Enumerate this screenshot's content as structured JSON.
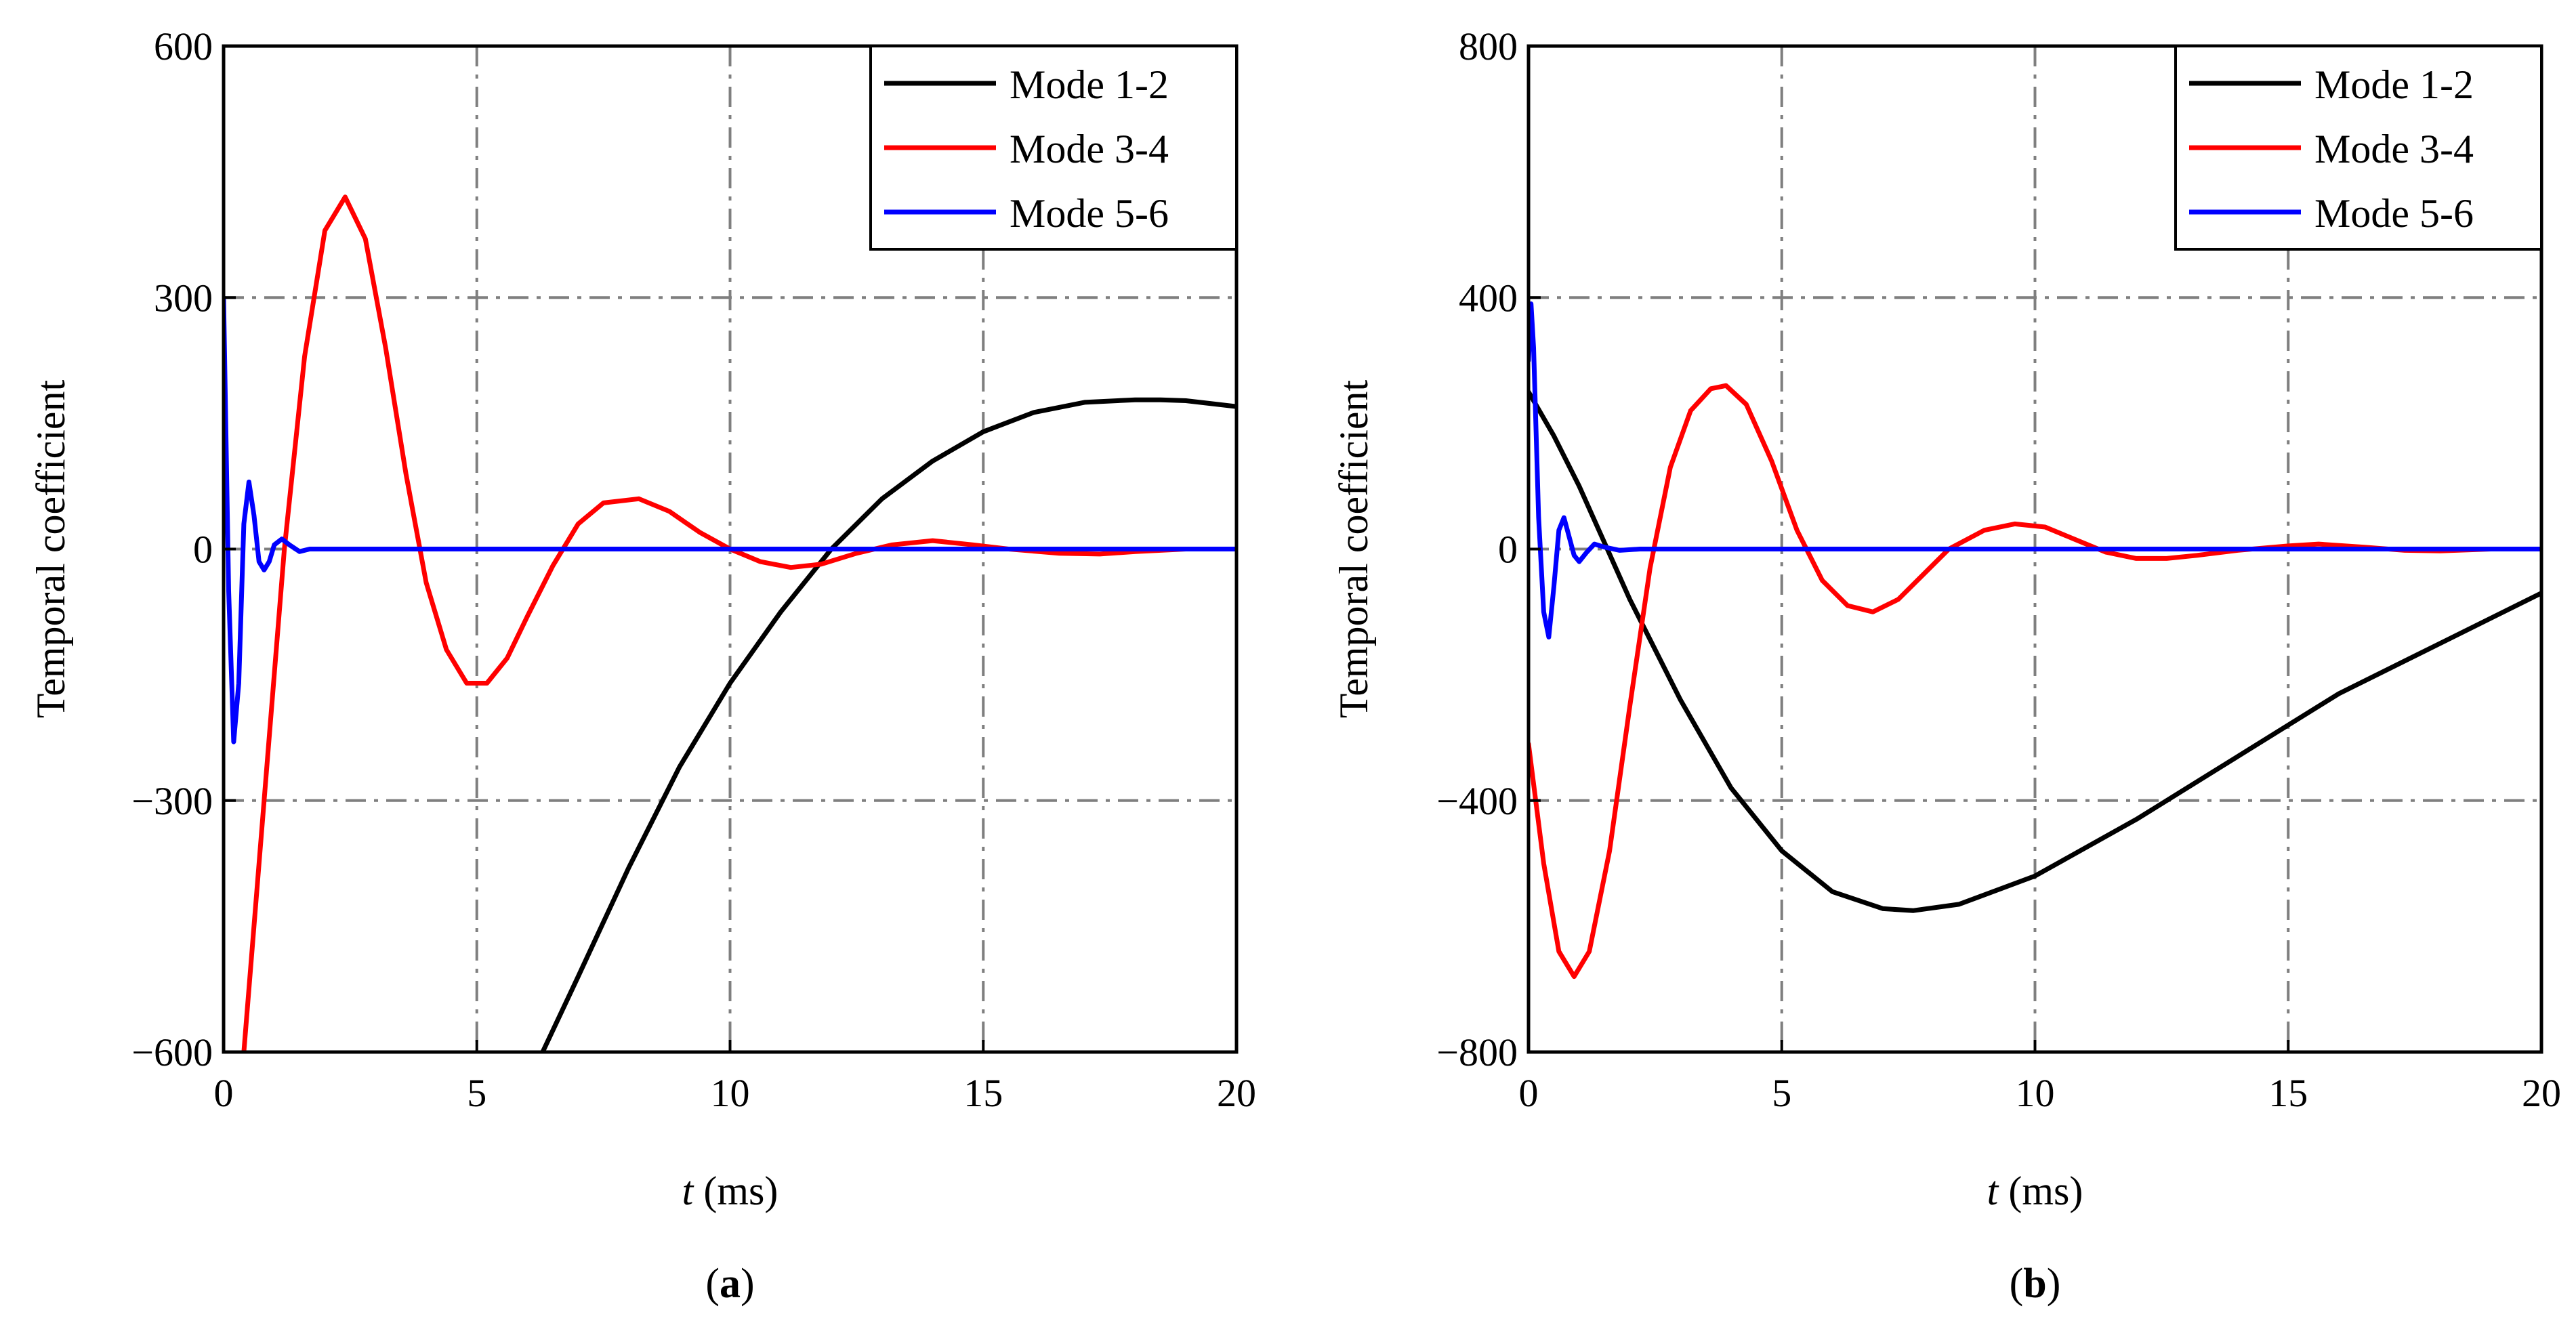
{
  "chart_data": [
    {
      "type": "line",
      "panel_label": "(a)",
      "panel_letter": "a",
      "xlabel_var": "t",
      "xlabel_unit": " (ms)",
      "ylabel": "Temporal coefficient",
      "xlim": [
        0,
        20
      ],
      "ylim": [
        -600,
        600
      ],
      "x_ticks": [
        0,
        5,
        10,
        15,
        20
      ],
      "x_tick_labels": [
        "0",
        "5",
        "10",
        "15",
        "20"
      ],
      "y_ticks": [
        -600,
        -300,
        0,
        300,
        600
      ],
      "y_tick_labels": [
        "−600",
        "−300",
        "0",
        "300",
        "600"
      ],
      "grid": true,
      "legend_position": "top-right",
      "series": [
        {
          "name": "Mode 1-2",
          "color": "#000000",
          "x": [
            6.3,
            7.0,
            8.0,
            9.0,
            10.0,
            11.0,
            12.0,
            13.0,
            14.0,
            15.0,
            16.0,
            17.0,
            18.0,
            18.5,
            19.0,
            20.0
          ],
          "y": [
            -600,
            -510,
            -380,
            -260,
            -160,
            -75,
            0,
            60,
            105,
            140,
            163,
            175,
            178,
            178,
            177,
            170
          ]
        },
        {
          "name": "Mode 3-4",
          "color": "#ff0000",
          "x": [
            0.4,
            0.8,
            1.2,
            1.6,
            2.0,
            2.4,
            2.8,
            3.2,
            3.6,
            4.0,
            4.4,
            4.8,
            5.2,
            5.6,
            6.0,
            6.5,
            7.0,
            7.5,
            8.2,
            8.8,
            9.4,
            10.0,
            10.6,
            11.2,
            11.8,
            12.5,
            13.2,
            14.0,
            14.8,
            15.5,
            16.5,
            17.3,
            18.0,
            19.0,
            20.0
          ],
          "y": [
            -600,
            -300,
            0,
            230,
            380,
            420,
            370,
            240,
            90,
            -40,
            -120,
            -160,
            -160,
            -130,
            -80,
            -20,
            30,
            55,
            60,
            45,
            20,
            0,
            -15,
            -22,
            -18,
            -5,
            5,
            10,
            5,
            0,
            -5,
            -6,
            -3,
            0,
            0
          ]
        },
        {
          "name": "Mode 5-6",
          "color": "#0000ff",
          "x": [
            0.0,
            0.1,
            0.2,
            0.3,
            0.4,
            0.5,
            0.6,
            0.7,
            0.8,
            0.9,
            1.0,
            1.15,
            1.3,
            1.5,
            1.7,
            2.0,
            2.5,
            5.0,
            10.0,
            15.0,
            20.0
          ],
          "y": [
            300,
            -50,
            -230,
            -160,
            30,
            80,
            40,
            -15,
            -25,
            -15,
            5,
            12,
            5,
            -3,
            0,
            0,
            0,
            0,
            0,
            0,
            0
          ]
        }
      ]
    },
    {
      "type": "line",
      "panel_label": "(b)",
      "panel_letter": "b",
      "xlabel_var": "t",
      "xlabel_unit": " (ms)",
      "ylabel": "Temporal coefficient",
      "xlim": [
        0,
        20
      ],
      "ylim": [
        -800,
        800
      ],
      "x_ticks": [
        0,
        5,
        10,
        15,
        20
      ],
      "x_tick_labels": [
        "0",
        "5",
        "10",
        "15",
        "20"
      ],
      "y_ticks": [
        -800,
        -400,
        0,
        400,
        800
      ],
      "y_tick_labels": [
        "−800",
        "−400",
        "0",
        "400",
        "800"
      ],
      "grid": true,
      "legend_position": "top-right",
      "series": [
        {
          "name": "Mode 1-2",
          "color": "#000000",
          "x": [
            0.0,
            0.5,
            1.0,
            2.0,
            3.0,
            4.0,
            5.0,
            6.0,
            7.0,
            7.6,
            8.5,
            10.0,
            12.0,
            14.0,
            16.0,
            18.0,
            20.0
          ],
          "y": [
            250,
            180,
            100,
            -80,
            -240,
            -380,
            -480,
            -545,
            -572,
            -575,
            -565,
            -520,
            -430,
            -330,
            -230,
            -150,
            -70
          ]
        },
        {
          "name": "Mode 3-4",
          "color": "#ff0000",
          "x": [
            0.0,
            0.3,
            0.6,
            0.9,
            1.2,
            1.6,
            2.0,
            2.4,
            2.8,
            3.2,
            3.6,
            3.9,
            4.3,
            4.8,
            5.3,
            5.8,
            6.3,
            6.8,
            7.3,
            7.8,
            8.3,
            9.0,
            9.6,
            10.2,
            10.8,
            11.4,
            12.0,
            12.6,
            13.2,
            14.0,
            15.0,
            15.6,
            16.5,
            17.3,
            18.0,
            19.0,
            20.0
          ],
          "y": [
            -310,
            -500,
            -640,
            -680,
            -640,
            -480,
            -250,
            -30,
            130,
            220,
            255,
            260,
            230,
            140,
            30,
            -50,
            -90,
            -100,
            -80,
            -40,
            0,
            30,
            40,
            35,
            15,
            -5,
            -15,
            -15,
            -10,
            -2,
            5,
            8,
            3,
            -2,
            -3,
            0,
            0
          ]
        },
        {
          "name": "Mode 5-6",
          "color": "#0000ff",
          "x": [
            0.0,
            0.05,
            0.1,
            0.2,
            0.3,
            0.4,
            0.5,
            0.6,
            0.7,
            0.8,
            0.9,
            1.0,
            1.15,
            1.3,
            1.5,
            1.8,
            2.2,
            3.0,
            5.0,
            10.0,
            15.0,
            20.0
          ],
          "y": [
            300,
            390,
            320,
            50,
            -100,
            -140,
            -60,
            30,
            50,
            20,
            -10,
            -20,
            -5,
            8,
            3,
            -2,
            0,
            0,
            0,
            0,
            0,
            0
          ]
        }
      ]
    }
  ]
}
